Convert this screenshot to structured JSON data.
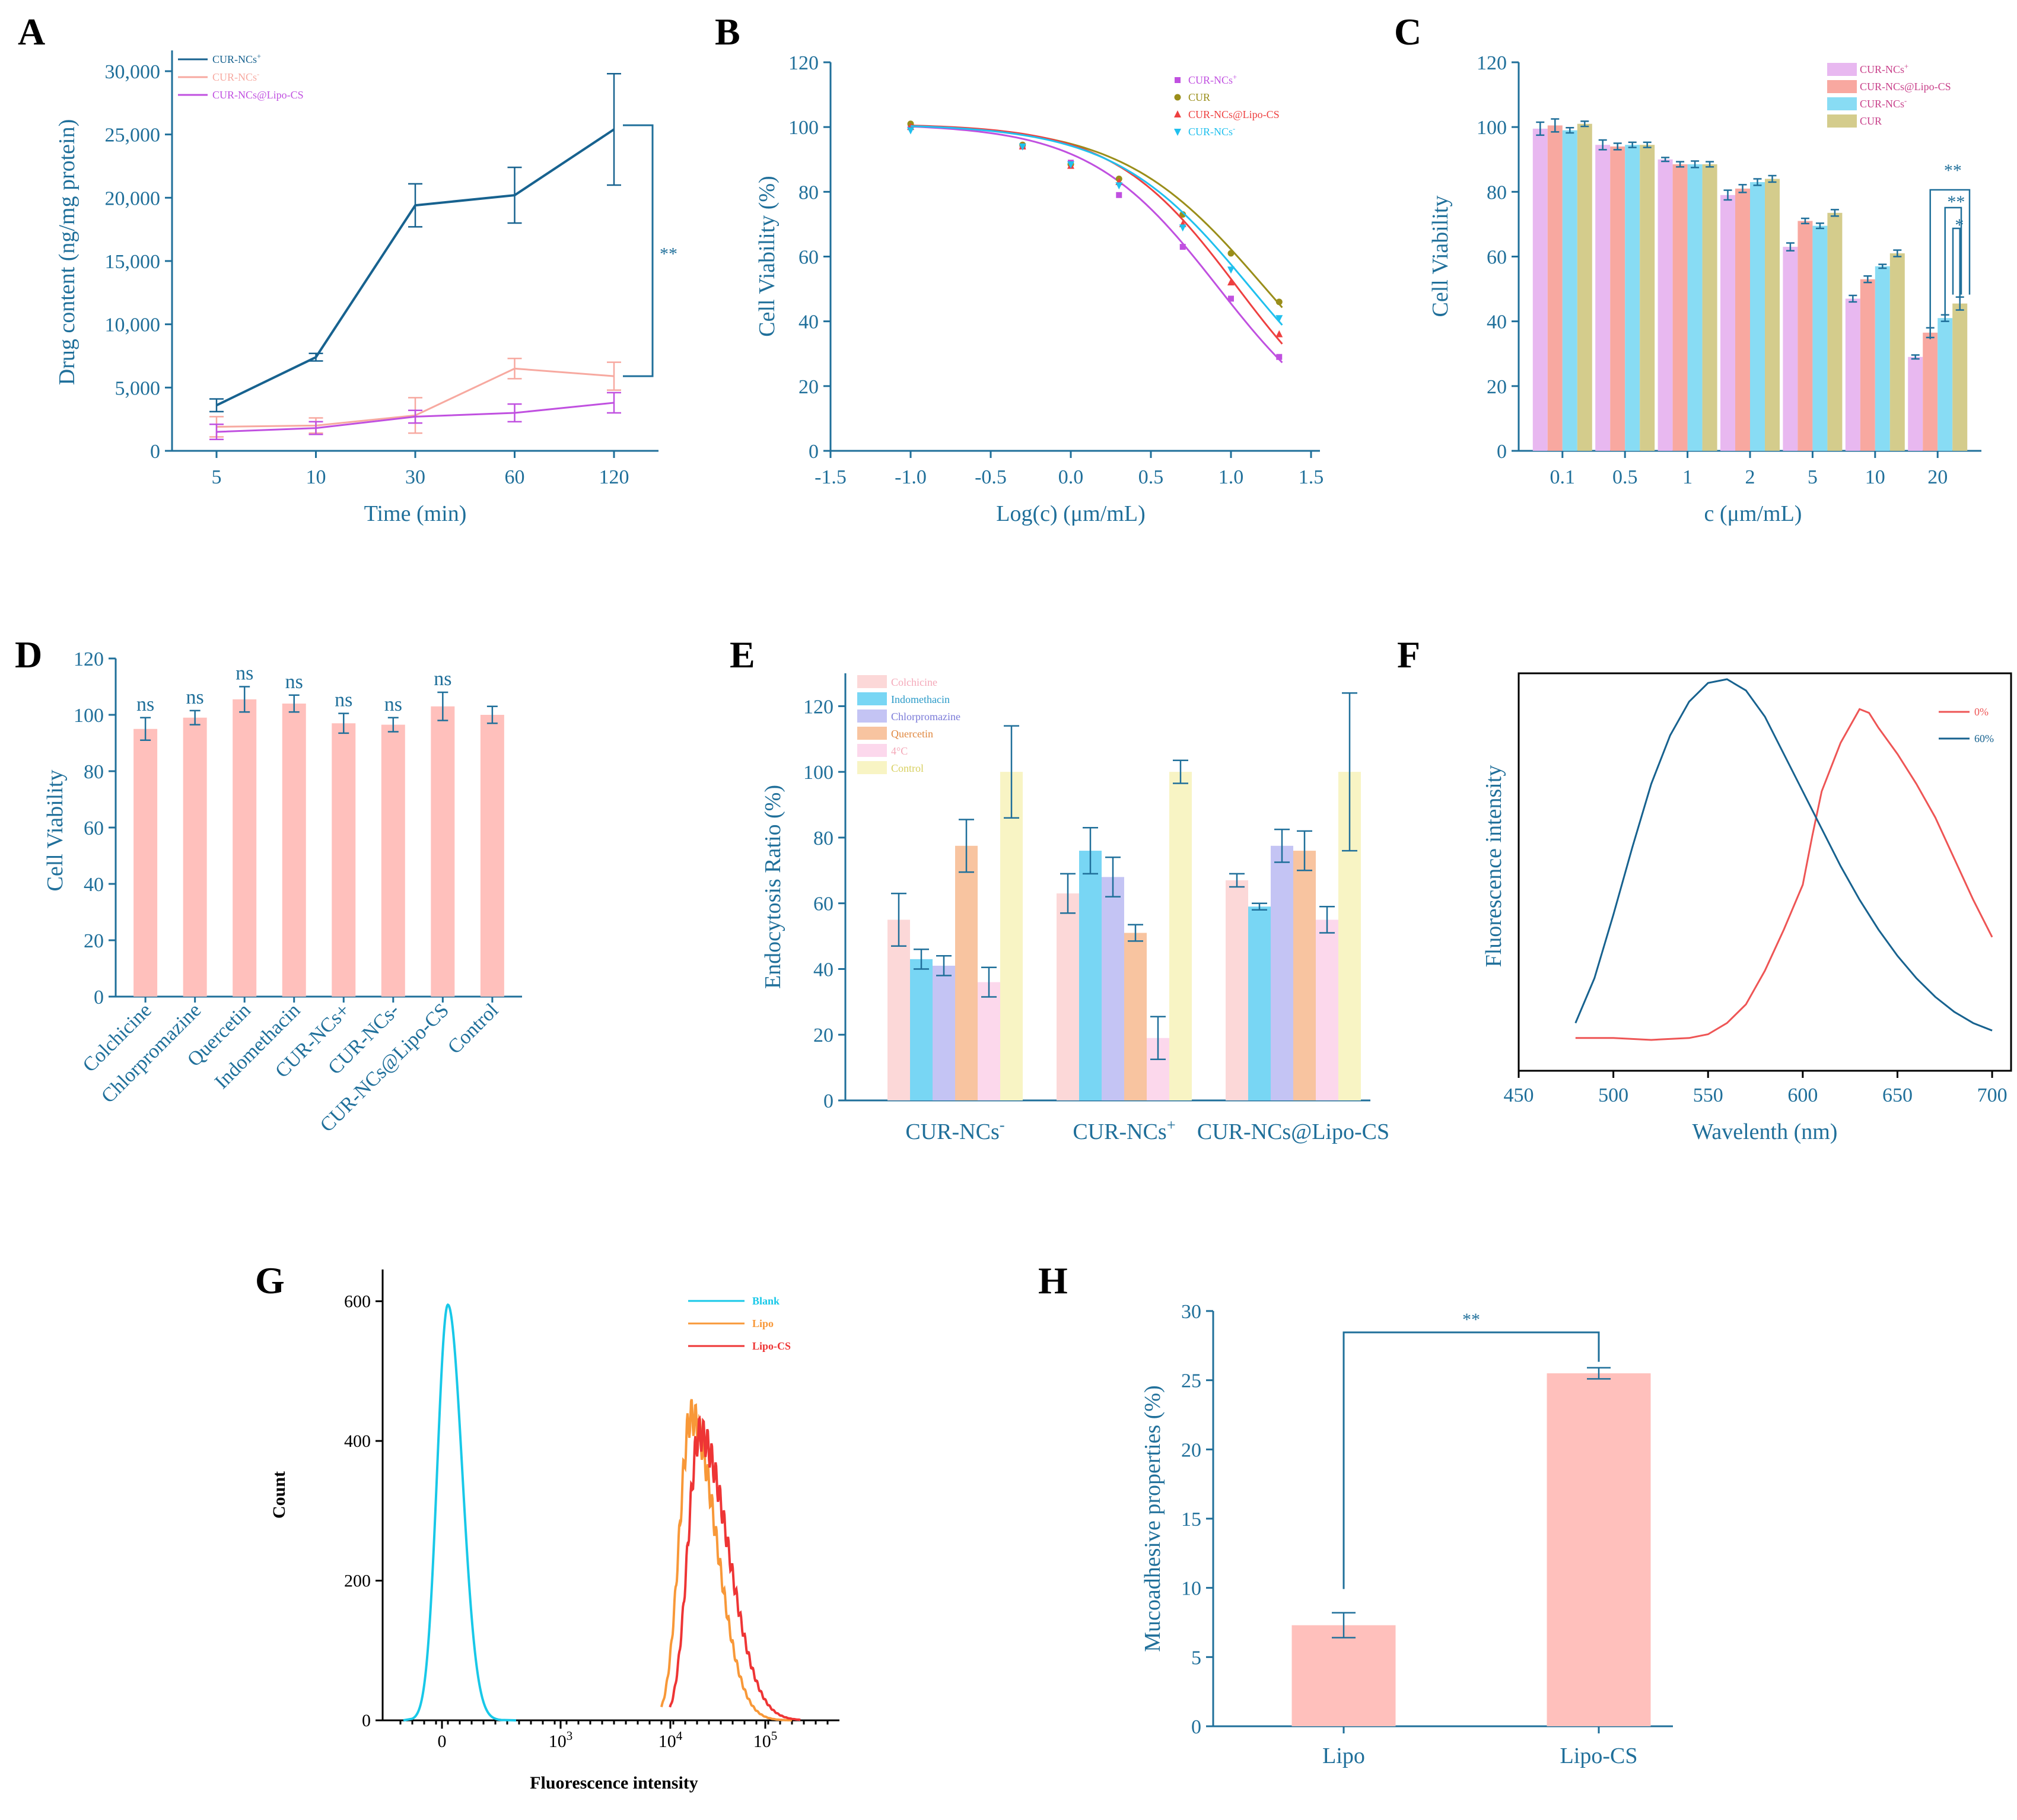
{
  "colors": {
    "axis": "#1f6f9a",
    "dark_blue": "#17628f",
    "light_pink": "#f7a9a0",
    "violet": "#c050e0",
    "olive": "#9a8e1a",
    "red": "#ee4040",
    "cyan": "#20c0ee",
    "bar_pink": "#ffc0bc",
    "bar_violet": "#e8b8f0",
    "bar_salmon": "#f8a8a0",
    "bar_cyan": "#88dcf4",
    "bar_olive": "#d4cc8c"
  },
  "panels": {
    "A": "A",
    "B": "B",
    "C": "C",
    "D": "D",
    "E": "E",
    "F": "F",
    "G": "G",
    "H": "H"
  },
  "chart_data": [
    {
      "id": "A",
      "type": "line",
      "xlabel": "Time (min)",
      "ylabel": "Drug content (ng/mg protein)",
      "categories": [
        "5",
        "10",
        "30",
        "60",
        "120"
      ],
      "yticks": [
        "0",
        "5,000",
        "10,000",
        "15,000",
        "20,000",
        "25,000",
        "30,000"
      ],
      "ylim": [
        0,
        30000
      ],
      "series": [
        {
          "name": "CUR-NCs",
          "sup": "+",
          "color": "#17628f",
          "values": [
            3600,
            7400,
            19400,
            20200,
            25400
          ],
          "errors": [
            500,
            300,
            1700,
            2200,
            4400
          ]
        },
        {
          "name": "CUR-NCs",
          "sup": "-",
          "color": "#f7a9a0",
          "values": [
            1900,
            2000,
            2800,
            6500,
            5900
          ],
          "errors": [
            800,
            600,
            1400,
            800,
            1100
          ]
        },
        {
          "name": "CUR-NCs@Lipo-CS",
          "sup": "",
          "color": "#c050e0",
          "values": [
            1500,
            1800,
            2700,
            3000,
            3800
          ],
          "errors": [
            600,
            500,
            500,
            700,
            800
          ]
        }
      ],
      "significance": "**"
    },
    {
      "id": "B",
      "type": "scatter",
      "xlabel": "Log(c) (μm/mL)",
      "ylabel": "Cell Viability (%)",
      "xticks": [
        "-1.5",
        "-1.0",
        "-0.5",
        "0.0",
        "0.5",
        "1.0",
        "1.5"
      ],
      "yticks": [
        "0",
        "20",
        "40",
        "60",
        "80",
        "100",
        "120"
      ],
      "xlim": [
        -1.5,
        1.5
      ],
      "ylim": [
        0,
        120
      ],
      "x": [
        -1.0,
        -0.301,
        0.0,
        0.301,
        0.699,
        1.0,
        1.301
      ],
      "series": [
        {
          "name": "CUR-NCs",
          "sup": "+",
          "marker": "square",
          "color": "#c050e0",
          "values": [
            100,
            94,
            89,
            79,
            63,
            47,
            29
          ],
          "ic50_log": 0.92,
          "hill": 1.08
        },
        {
          "name": "CUR",
          "sup": "",
          "marker": "circle",
          "color": "#9a8e1a",
          "values": [
            101,
            94.5,
            88.5,
            84,
            73,
            61,
            46
          ],
          "ic50_log": 1.21,
          "hill": 0.98
        },
        {
          "name": "CUR-NCs@Lipo-CS",
          "sup": "",
          "marker": "triangle",
          "color": "#ee4040",
          "values": [
            100,
            94,
            88,
            83,
            70,
            52,
            36
          ],
          "ic50_log": 1.04,
          "hill": 1.12
        },
        {
          "name": "CUR-NCs",
          "sup": "-",
          "marker": "triangle-down",
          "color": "#20c0ee",
          "values": [
            99,
            94,
            88.5,
            82,
            69,
            56,
            41
          ],
          "ic50_log": 1.12,
          "hill": 1.02
        }
      ]
    },
    {
      "id": "C",
      "type": "bar",
      "xlabel": "c (μm/mL)",
      "ylabel": "Cell Viability",
      "categories": [
        "0.1",
        "0.5",
        "1",
        "2",
        "5",
        "10",
        "20"
      ],
      "yticks": [
        "0",
        "20",
        "40",
        "60",
        "80",
        "100",
        "120"
      ],
      "ylim": [
        0,
        120
      ],
      "series": [
        {
          "name": "CUR-NCs",
          "sup": "+",
          "color": "#e8b8f0",
          "values": [
            99.5,
            94.5,
            90,
            79,
            63,
            47,
            29
          ],
          "errors": [
            2,
            1.5,
            0.6,
            1.5,
            1.2,
            1,
            0.6
          ]
        },
        {
          "name": "CUR-NCs@Lipo-CS",
          "sup": "",
          "color": "#f8a8a0",
          "values": [
            100.5,
            94,
            88.5,
            81,
            71,
            53,
            36.5
          ],
          "errors": [
            2,
            1,
            0.8,
            1.2,
            0.8,
            1,
            1.5
          ]
        },
        {
          "name": "CUR-NCs",
          "sup": "-",
          "color": "#88dcf4",
          "values": [
            99,
            94.5,
            88.5,
            83,
            69.5,
            57,
            41
          ],
          "errors": [
            0.8,
            0.8,
            1,
            1,
            0.8,
            0.6,
            1
          ]
        },
        {
          "name": "CUR",
          "sup": "",
          "color": "#d4cc8c",
          "values": [
            101,
            94.5,
            88.5,
            84,
            73.5,
            61,
            45.5
          ],
          "errors": [
            0.8,
            0.8,
            0.8,
            1,
            1,
            1,
            2
          ]
        }
      ],
      "significance": [
        "**",
        "**",
        "*"
      ]
    },
    {
      "id": "D",
      "type": "bar",
      "ylabel": "Cell Viability",
      "categories": [
        "Colchicine",
        "Chlorpromazine",
        "Quercetin",
        "Indomethacin",
        "CUR-NCs+",
        "CUR-NCs-",
        "CUR-NCs@Lipo-CS",
        "Control"
      ],
      "values": [
        95,
        99,
        105.5,
        104,
        97,
        96.5,
        103,
        100
      ],
      "errors": [
        4,
        2.5,
        4.5,
        3,
        3.5,
        2.5,
        5,
        3
      ],
      "labels": [
        "ns",
        "ns",
        "ns",
        "ns",
        "ns",
        "ns",
        "ns"
      ],
      "yticks": [
        "0",
        "20",
        "40",
        "60",
        "80",
        "100",
        "120"
      ],
      "ylim": [
        0,
        120
      ]
    },
    {
      "id": "E",
      "type": "bar",
      "ylabel": "Endocytosis Ratio (%)",
      "groups": [
        {
          "name": "CUR-NCs",
          "sup": "-"
        },
        {
          "name": "CUR-NCs",
          "sup": "+"
        },
        {
          "name": "CUR-NCs@Lipo-CS",
          "sup": ""
        }
      ],
      "yticks": [
        "0",
        "20",
        "40",
        "60",
        "80",
        "100",
        "120"
      ],
      "ylim": [
        0,
        130
      ],
      "series": [
        {
          "name": "Colchicine",
          "color": "#fcd8d8",
          "values": [
            55,
            63,
            67
          ],
          "errors": [
            8,
            6,
            2
          ]
        },
        {
          "name": "Indomethacin",
          "color": "#78d6f4",
          "values": [
            43,
            76,
            59
          ],
          "errors": [
            3,
            7,
            1
          ]
        },
        {
          "name": "Chlorpromazine",
          "color": "#c4c4f4",
          "values": [
            41,
            68,
            77.5
          ],
          "errors": [
            3,
            6,
            5
          ]
        },
        {
          "name": "Quercetin",
          "color": "#f8c4a0",
          "values": [
            77.5,
            51,
            76
          ],
          "errors": [
            8,
            2.5,
            6
          ]
        },
        {
          "name": "4°C",
          "color": "#fcd8ec",
          "values": [
            36,
            19,
            55
          ],
          "errors": [
            4.5,
            6.5,
            4
          ]
        },
        {
          "name": "Control",
          "color": "#f8f4c4",
          "values": [
            100,
            100,
            100
          ],
          "errors": [
            14,
            3.5,
            24
          ]
        }
      ]
    },
    {
      "id": "F",
      "type": "line",
      "xlabel": "Wavelenth (nm)",
      "ylabel": "Fluorescence intensity",
      "xticks": [
        "450",
        "500",
        "550",
        "600",
        "650",
        "700"
      ],
      "xlim": [
        450,
        710
      ],
      "series": [
        {
          "name": "0%",
          "color": "#ee5555",
          "x": [
            480,
            500,
            520,
            540,
            550,
            560,
            570,
            580,
            590,
            600,
            605,
            610,
            620,
            630,
            635,
            640,
            650,
            660,
            670,
            680,
            690,
            700
          ],
          "values": [
            0.04,
            0.04,
            0.035,
            0.04,
            0.05,
            0.08,
            0.13,
            0.22,
            0.33,
            0.45,
            0.58,
            0.7,
            0.83,
            0.92,
            0.91,
            0.87,
            0.8,
            0.72,
            0.63,
            0.52,
            0.41,
            0.31
          ]
        },
        {
          "name": "60%",
          "color": "#17628f",
          "x": [
            480,
            490,
            500,
            510,
            520,
            530,
            540,
            550,
            560,
            570,
            580,
            590,
            600,
            610,
            620,
            630,
            640,
            650,
            660,
            670,
            680,
            690,
            700
          ],
          "values": [
            0.08,
            0.2,
            0.37,
            0.55,
            0.72,
            0.85,
            0.94,
            0.99,
            1.0,
            0.97,
            0.9,
            0.8,
            0.7,
            0.6,
            0.5,
            0.41,
            0.33,
            0.26,
            0.2,
            0.15,
            0.11,
            0.08,
            0.06
          ]
        }
      ]
    },
    {
      "id": "G",
      "type": "line",
      "xlabel": "Fluorescence intensity",
      "ylabel": "Count",
      "yticks": [
        "0",
        "200",
        "400",
        "600"
      ],
      "ylim": [
        0,
        620
      ],
      "xtick_labels": [
        "0",
        "10",
        "10",
        "10"
      ],
      "xtick_exponents": [
        "",
        "3",
        "4",
        "5"
      ],
      "series": [
        {
          "name": "Blank",
          "color": "#18c8e8",
          "peak_at": 0.4,
          "peak": 595
        },
        {
          "name": "Lipo",
          "color": "#f89838",
          "peak_at": 19000,
          "peak": 435
        },
        {
          "name": "Lipo-CS",
          "color": "#ee3535",
          "peak_at": 23000,
          "peak": 410
        }
      ]
    },
    {
      "id": "H",
      "type": "bar",
      "ylabel": "Mucoadhesive properties (%)",
      "categories": [
        "Lipo",
        "Lipo-CS"
      ],
      "values": [
        7.3,
        25.5
      ],
      "errors": [
        0.9,
        0.4
      ],
      "yticks": [
        "0",
        "5",
        "10",
        "15",
        "20",
        "25",
        "30"
      ],
      "ylim": [
        0,
        30
      ],
      "significance": "**"
    }
  ]
}
